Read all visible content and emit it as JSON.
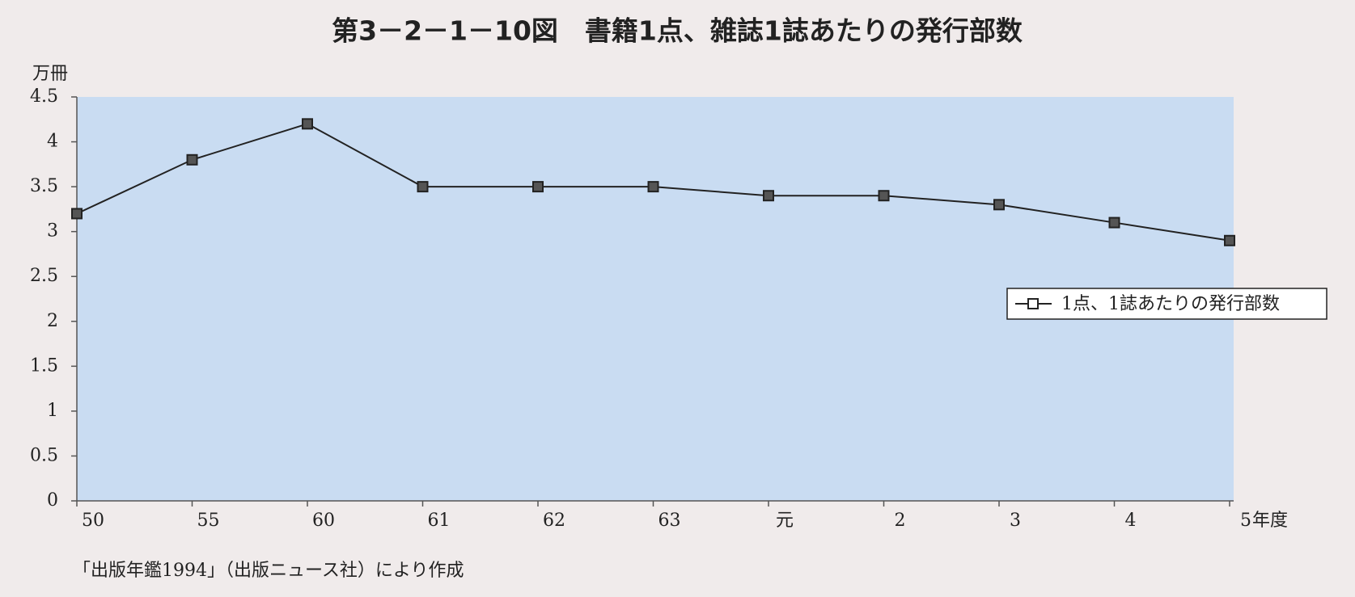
{
  "chart_data": {
    "type": "line",
    "title": "第3－2－1－10図　書籍1点、雑誌1誌あたりの発行部数",
    "y_label": "万冊",
    "x_label": "年度",
    "source": "「出版年鑑1994」（出版ニュース社）により作成",
    "categories": [
      "50",
      "55",
      "60",
      "61",
      "62",
      "63",
      "元",
      "2",
      "3",
      "4",
      "5"
    ],
    "series": [
      {
        "name": "1点、1誌あたりの発行部数",
        "color": "#222222",
        "values": [
          3.2,
          3.8,
          4.2,
          3.5,
          3.5,
          3.5,
          3.4,
          3.4,
          3.3,
          3.1,
          2.9
        ]
      }
    ],
    "ylim": [
      0,
      4.5
    ],
    "yticks": [
      0,
      0.5,
      1,
      1.5,
      2,
      2.5,
      3,
      3.5,
      4,
      4.5
    ],
    "plot_background": "#c9dcf2"
  }
}
